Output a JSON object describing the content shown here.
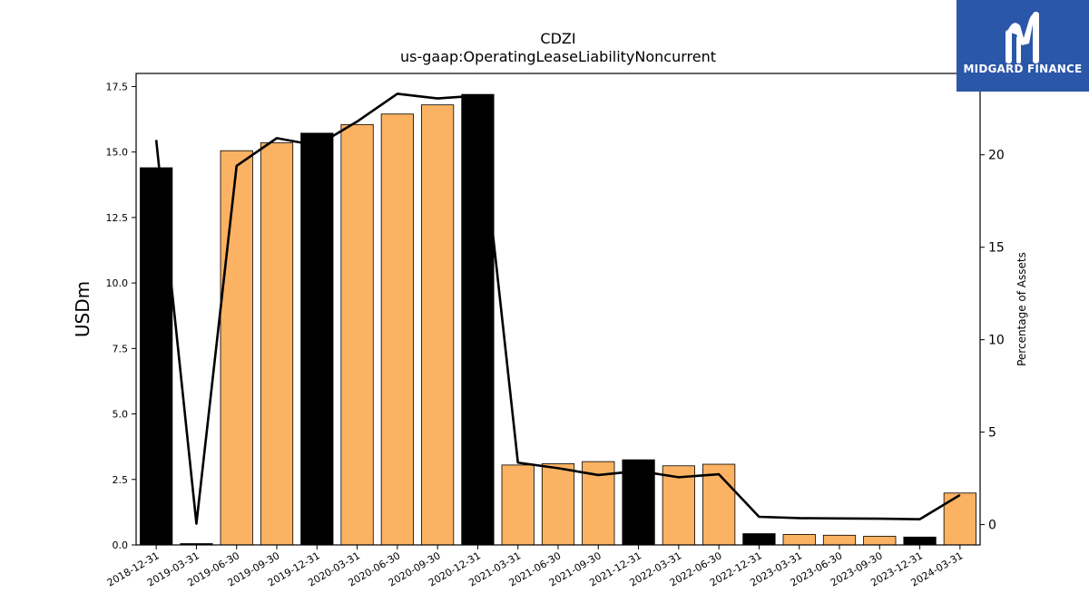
{
  "logo": {
    "text": "MIDGARD FINANCE"
  },
  "chart_data": {
    "type": "bar",
    "title": "CDZI",
    "subtitle": "us-gaap:OperatingLeaseLiabilityNoncurrent",
    "ylabel": "USDm",
    "y2label": "Percentage of Assets",
    "ylim": [
      0,
      18.0
    ],
    "y2lim": [
      -1.1,
      24.4
    ],
    "yticks": [
      "0.0",
      "2.5",
      "5.0",
      "7.5",
      "10.0",
      "12.5",
      "15.0",
      "17.5"
    ],
    "y2ticks": [
      "0",
      "5",
      "10",
      "15",
      "20"
    ],
    "categories": [
      "2018-12-31",
      "2019-03-31",
      "2019-06-30",
      "2019-09-30",
      "2019-12-31",
      "2020-03-31",
      "2020-06-30",
      "2020-09-30",
      "2020-12-31",
      "2021-03-31",
      "2021-06-30",
      "2021-09-30",
      "2021-12-31",
      "2022-03-31",
      "2022-06-30",
      "2022-12-31",
      "2023-03-31",
      "2023-06-30",
      "2023-09-30",
      "2023-12-31",
      "2024-03-31"
    ],
    "series": [
      {
        "type": "bar",
        "values": [
          14.4,
          0.05,
          15.05,
          15.35,
          15.72,
          16.05,
          16.45,
          16.8,
          17.2,
          3.05,
          3.1,
          3.18,
          3.25,
          3.02,
          3.08,
          0.43,
          0.4,
          0.37,
          0.33,
          0.3,
          1.98
        ],
        "colors": [
          "#000000",
          "#000000",
          "#fbb262",
          "#fbb262",
          "#000000",
          "#fbb262",
          "#fbb262",
          "#fbb262",
          "#000000",
          "#fbb262",
          "#fbb262",
          "#fbb262",
          "#000000",
          "#fbb262",
          "#fbb262",
          "#000000",
          "#fbb262",
          "#fbb262",
          "#fbb262",
          "#000000",
          "#fbb262"
        ]
      },
      {
        "type": "line",
        "axis": "right",
        "color": "#000000",
        "values": [
          20.8,
          0.05,
          19.4,
          20.9,
          20.5,
          21.8,
          23.3,
          23.05,
          23.2,
          3.35,
          3.05,
          2.68,
          2.9,
          2.56,
          2.72,
          0.42,
          0.35,
          0.33,
          0.32,
          0.29,
          1.6
        ]
      }
    ],
    "grid": false,
    "legend": "none"
  }
}
